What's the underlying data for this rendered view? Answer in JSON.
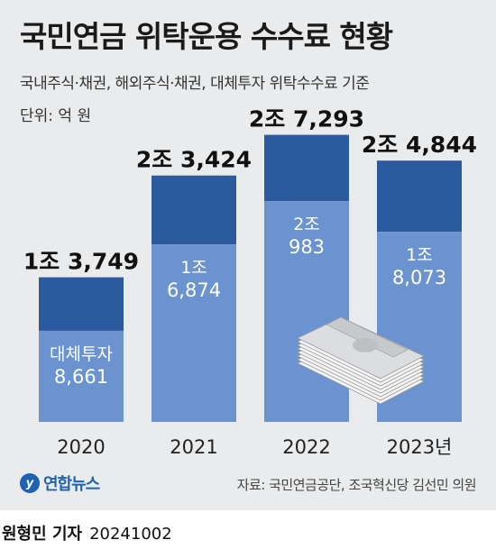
{
  "title": "국민연금 위탁운용 수수료 현황",
  "subtitle": "국내주식·채권, 해외주식·채권, 대체투자 위탁수수료 기준",
  "unit_label": "단위: 억 원",
  "source": "자료: 국민연금공단, 조국혁신당 김선민 의원",
  "logo_text": "연합뉴스",
  "byline": {
    "author": "원형민 기자",
    "date": "20241002"
  },
  "colors": {
    "background": "#e9ebed",
    "total_segment": "#2c5a9f",
    "lower_segment": "#6a93cf"
  },
  "chart_data": {
    "type": "bar",
    "stacked": true,
    "categories": [
      "2020",
      "2021",
      "2022",
      "2023년"
    ],
    "totals": [
      13749,
      23424,
      27293,
      24844
    ],
    "total_labels": [
      "1조 3,749",
      "2조 3,424",
      "2조 7,293",
      "2조 4,844"
    ],
    "lower_values": [
      8661,
      16874,
      20983,
      18073
    ],
    "lower_labels": [
      [
        "대체투자",
        "8,661"
      ],
      [
        "1조",
        "6,874"
      ],
      [
        "2조",
        "983"
      ],
      [
        "1조",
        "8,073"
      ]
    ],
    "ylim": [
      0,
      30000
    ]
  }
}
